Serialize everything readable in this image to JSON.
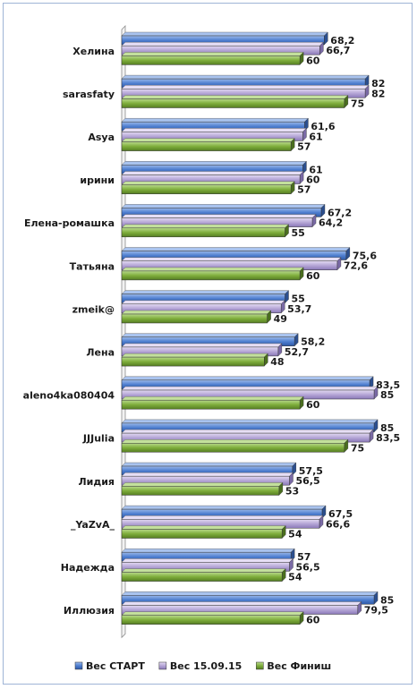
{
  "chart_data": {
    "type": "bar",
    "orientation": "horizontal",
    "categories": [
      "Хелина",
      "sarasfaty",
      "Asya",
      "ирини",
      "Елена-ромашка",
      "Татьяна",
      "zmeik@",
      "Лена",
      "aleno4ka080404",
      "JJJulia",
      "Лидия",
      "_YaZvA_",
      "Надежда",
      "Иллюзия"
    ],
    "series": [
      {
        "name": "Вес СТАРТ",
        "color": "#4f7fd0",
        "values": [
          68.2,
          82,
          61.6,
          61,
          67.2,
          75.6,
          55,
          58.2,
          83.5,
          85,
          57.5,
          67.5,
          57,
          85
        ]
      },
      {
        "name": "Вес 15.09.15",
        "color": "#b5a6d6",
        "values": [
          66.7,
          82,
          61,
          60,
          64.2,
          72.6,
          53.7,
          52.7,
          85,
          83.5,
          56.5,
          66.6,
          56.5,
          79.5
        ]
      },
      {
        "name": "Вес Финиш",
        "color": "#7fae3c",
        "values": [
          60,
          75,
          57,
          57,
          55,
          60,
          49,
          48,
          60,
          75,
          53,
          54,
          54,
          60
        ]
      }
    ],
    "value_labels": [
      [
        "68,2",
        "82",
        "61,6",
        "61",
        "67,2",
        "75,6",
        "55",
        "58,2",
        "83,5",
        "85",
        "57,5",
        "67,5",
        "57",
        "85"
      ],
      [
        "66,7",
        "82",
        "61",
        "60",
        "64,2",
        "72,6",
        "53,7",
        "52,7",
        "85",
        "83,5",
        "56,5",
        "66,6",
        "56,5",
        "79,5"
      ],
      [
        "60",
        "75",
        "57",
        "57",
        "55",
        "60",
        "49",
        "48",
        "60",
        "75",
        "53",
        "54",
        "54",
        "60"
      ]
    ],
    "xlim": [
      0,
      88
    ],
    "grid": false,
    "legend": "bottom"
  }
}
